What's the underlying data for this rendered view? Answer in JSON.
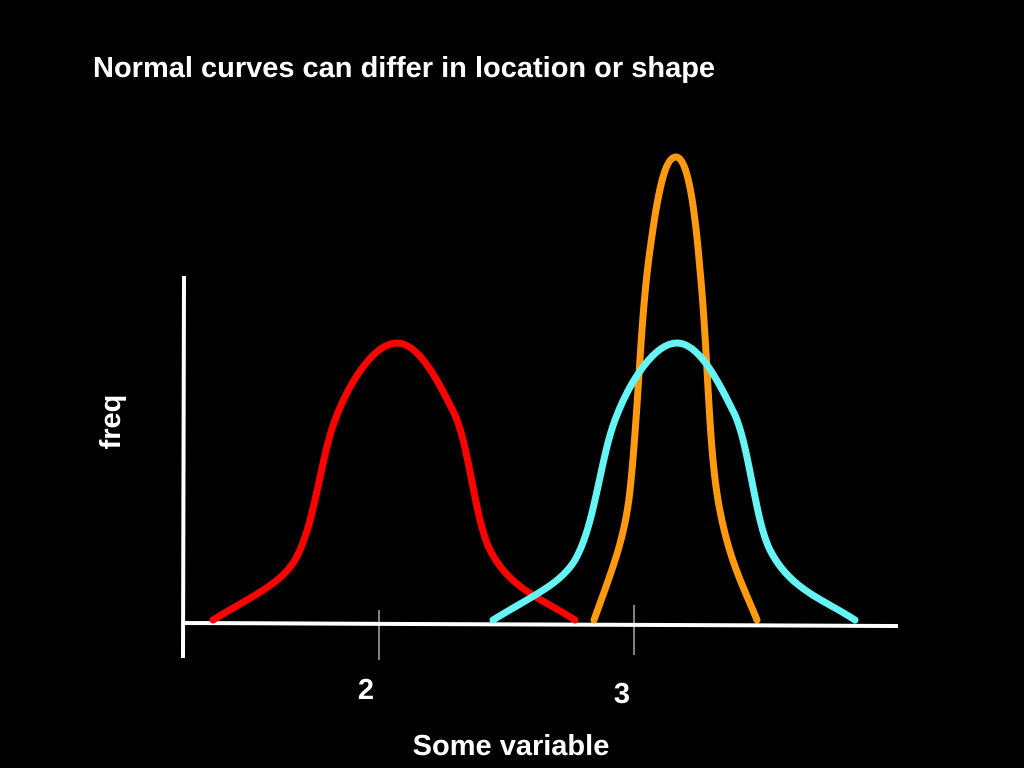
{
  "title": "Normal curves can differ in location or shape",
  "axes": {
    "y_label": "freq",
    "x_label": "Some variable",
    "x_ticks": [
      "2",
      "3"
    ]
  }
}
